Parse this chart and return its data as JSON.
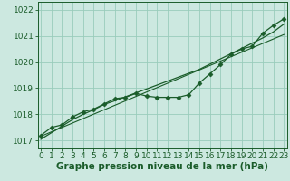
{
  "xlabel": "Graphe pression niveau de la mer (hPa)",
  "background_color": "#cce8e0",
  "plot_bg_color": "#cce8e0",
  "grid_color": "#99ccbb",
  "line_color": "#1a5c2a",
  "x_data": [
    0,
    1,
    2,
    3,
    4,
    5,
    6,
    7,
    8,
    9,
    10,
    11,
    12,
    13,
    14,
    15,
    16,
    17,
    18,
    19,
    20,
    21,
    22,
    23
  ],
  "y_data": [
    1017.2,
    1017.5,
    1017.6,
    1017.9,
    1018.1,
    1018.2,
    1018.4,
    1018.6,
    1018.65,
    1018.8,
    1018.7,
    1018.65,
    1018.65,
    1018.65,
    1018.75,
    1019.2,
    1019.55,
    1019.9,
    1020.3,
    1020.5,
    1020.6,
    1021.1,
    1021.4,
    1021.65
  ],
  "y_trend_smooth": [
    1017.05,
    1017.3,
    1017.55,
    1017.8,
    1018.0,
    1018.18,
    1018.38,
    1018.52,
    1018.67,
    1018.82,
    1018.97,
    1019.12,
    1019.27,
    1019.42,
    1019.57,
    1019.72,
    1019.92,
    1020.12,
    1020.32,
    1020.52,
    1020.72,
    1020.92,
    1021.15,
    1021.45
  ],
  "ylim": [
    1016.7,
    1022.3
  ],
  "yticks": [
    1017,
    1018,
    1019,
    1020,
    1021,
    1022
  ],
  "xlim": [
    -0.3,
    23.3
  ],
  "xticks": [
    0,
    1,
    2,
    3,
    4,
    5,
    6,
    7,
    8,
    9,
    10,
    11,
    12,
    13,
    14,
    15,
    16,
    17,
    18,
    19,
    20,
    21,
    22,
    23
  ],
  "xlabel_fontsize": 7.5,
  "tick_fontsize": 6.5,
  "marker": "D",
  "marker_size": 2.5,
  "linewidth_data": 0.9,
  "linewidth_trend": 0.9,
  "linewidth_linear": 0.8
}
